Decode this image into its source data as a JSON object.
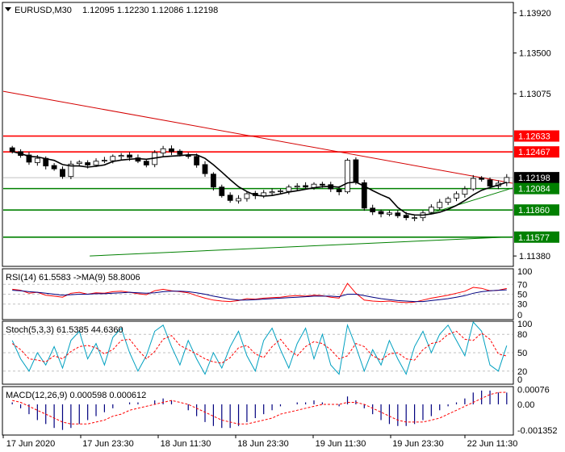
{
  "header": {
    "symbol_label": "EURUSD,M30",
    "ohlc": "1.12095 1.12230 1.12086 1.12198"
  },
  "colors": {
    "background": "#ffffff",
    "frame": "#000000",
    "resistance": "#ff0000",
    "support": "#008000",
    "trend_down": "#d40000",
    "trend_up": "#008000",
    "candle_up": "#ffffff",
    "candle_down": "#000000",
    "ma": "#000000",
    "rsi": "#ff0000",
    "rsi_ma": "#000080",
    "stoch_main": "#00a0c0",
    "stoch_signal": "#ff0000",
    "macd_hist": "#00007f",
    "macd_signal": "#ff0000",
    "level_line": "#c0c0c0"
  },
  "chart_data": [
    {
      "type": "candlestick",
      "panel": "price",
      "ylim": [
        1.1128,
        1.1402
      ],
      "y_ticks": [
        "1.13920",
        "1.13500",
        "1.13075",
        "1.12633",
        "1.12467",
        "1.12198",
        "1.12084",
        "1.11860",
        "1.11577",
        "1.11380"
      ],
      "current_price": "1.12198",
      "resistance_levels": [
        "1.12633",
        "1.12467"
      ],
      "support_levels": [
        "1.12084",
        "1.11860",
        "1.11577"
      ],
      "moving_average": true,
      "trendlines": [
        {
          "kind": "downtrend",
          "from_time": "17 Jun 2020",
          "from_price": 1.131,
          "to_time": "22 Jun 11:30",
          "to_price": 1.1214
        },
        {
          "kind": "uptrend",
          "from_time": "19 Jun 23:30",
          "from_price": 1.118,
          "to_time": "22 Jun 11:30",
          "to_price": 1.1209
        },
        {
          "kind": "long uptrend",
          "from_time": "17 Jun 23:30",
          "from_price": 1.1138,
          "to_time": "22 Jun 11:30",
          "to_price": 1.1158
        }
      ],
      "close_path": [
        1.1247,
        1.1243,
        1.1236,
        1.124,
        1.1232,
        1.1229,
        1.1221,
        1.1234,
        1.1236,
        1.1233,
        1.1237,
        1.1238,
        1.1242,
        1.1243,
        1.1241,
        1.1237,
        1.1233,
        1.1246,
        1.125,
        1.1247,
        1.1244,
        1.1242,
        1.1233,
        1.1224,
        1.121,
        1.1201,
        1.1196,
        1.1198,
        1.1203,
        1.1201,
        1.1204,
        1.1205,
        1.1206,
        1.121,
        1.1211,
        1.121,
        1.1213,
        1.1212,
        1.1208,
        1.1205,
        1.1238,
        1.1215,
        1.1188,
        1.1184,
        1.1182,
        1.1183,
        1.118,
        1.1178,
        1.1178,
        1.1183,
        1.1189,
        1.1194,
        1.1198,
        1.1203,
        1.1208,
        1.1219,
        1.1218,
        1.1211,
        1.1214,
        1.122
      ]
    },
    {
      "type": "line",
      "panel": "rsi",
      "label": "RSI(14) 61.5583 ->MA(9) 58.8006",
      "ylim": [
        0,
        100
      ],
      "levels": [
        70,
        50,
        30
      ],
      "y_ticks": [
        "100",
        "70",
        "50",
        "30",
        "0"
      ],
      "series": [
        {
          "values": [
            60,
            58,
            52,
            54,
            48,
            46,
            44,
            52,
            54,
            50,
            53,
            52,
            55,
            56,
            54,
            51,
            49,
            57,
            60,
            57,
            55,
            53,
            47,
            42,
            38,
            36,
            35,
            37,
            41,
            40,
            42,
            43,
            44,
            46,
            47,
            46,
            48,
            47,
            44,
            42,
            72,
            52,
            38,
            36,
            35,
            36,
            34,
            33,
            34,
            38,
            42,
            45,
            48,
            52,
            56,
            64,
            62,
            57,
            58,
            61.5583
          ]
        },
        {
          "values": [
            58,
            57,
            55,
            54,
            52,
            50,
            48,
            49,
            50,
            50,
            51,
            51,
            52,
            53,
            54,
            53,
            52,
            53,
            55,
            56,
            56,
            55,
            53,
            50,
            46,
            43,
            40,
            38,
            38,
            39,
            40,
            41,
            42,
            43,
            44,
            45,
            46,
            46,
            46,
            45,
            50,
            50,
            47,
            44,
            41,
            39,
            37,
            36,
            35,
            35,
            37,
            39,
            41,
            44,
            47,
            52,
            55,
            57,
            58,
            58.8006
          ]
        }
      ]
    },
    {
      "type": "line",
      "panel": "stochastic",
      "label": "Stoch(5,3,3) 61.5385 44.6360",
      "ylim": [
        0,
        100
      ],
      "levels": [
        80,
        50,
        20
      ],
      "y_ticks": [
        "100",
        "80",
        "50",
        "20",
        "0"
      ],
      "series": [
        {
          "values": [
            70,
            40,
            20,
            50,
            30,
            60,
            25,
            70,
            85,
            40,
            65,
            30,
            75,
            90,
            50,
            20,
            45,
            85,
            95,
            60,
            30,
            70,
            40,
            15,
            50,
            25,
            60,
            85,
            45,
            20,
            70,
            90,
            55,
            25,
            65,
            90,
            40,
            80,
            30,
            15,
            95,
            60,
            20,
            55,
            30,
            70,
            40,
            15,
            60,
            85,
            50,
            80,
            95,
            70,
            45,
            100,
            85,
            30,
            20,
            61.5385
          ]
        },
        {
          "values": [
            65,
            55,
            40,
            38,
            35,
            45,
            40,
            52,
            60,
            62,
            58,
            48,
            55,
            70,
            72,
            55,
            40,
            52,
            72,
            78,
            62,
            55,
            48,
            40,
            35,
            33,
            42,
            58,
            62,
            48,
            42,
            60,
            72,
            55,
            45,
            60,
            68,
            65,
            55,
            40,
            45,
            65,
            60,
            45,
            38,
            48,
            50,
            40,
            38,
            55,
            65,
            68,
            80,
            85,
            72,
            70,
            82,
            72,
            48,
            44.636
          ]
        }
      ]
    },
    {
      "type": "histogram",
      "panel": "macd",
      "label": "MACD(12,26,9) 0.000598 0.000612",
      "ylim": [
        -0.00152,
        0.00086
      ],
      "y_ticks": [
        "0.00076",
        "0.00",
        "-0.001352"
      ],
      "series": [
        {
          "values": [
            0.0001,
            -0.0002,
            -0.0005,
            -0.0008,
            -0.001,
            -0.0012,
            -0.0013,
            -0.0012,
            -0.001,
            -0.0008,
            -0.0006,
            -0.0004,
            -0.0002,
            0.0,
            0.0001,
            0.0001,
            0.0,
            0.0002,
            0.0003,
            0.0002,
            0.0,
            -0.0003,
            -0.0006,
            -0.0009,
            -0.0011,
            -0.0012,
            -0.0012,
            -0.0011,
            -0.0009,
            -0.0007,
            -0.0005,
            -0.0003,
            -0.0001,
            0.0,
            0.0001,
            0.0001,
            0.0002,
            0.0001,
            0.0,
            -0.0001,
            0.0004,
            0.0002,
            -0.0002,
            -0.0005,
            -0.0008,
            -0.001,
            -0.0011,
            -0.0011,
            -0.001,
            -0.0008,
            -0.0006,
            -0.0003,
            -0.0001,
            0.0001,
            0.0003,
            0.0006,
            0.0007,
            0.0007,
            0.0006,
            0.000598
          ]
        },
        {
          "values": [
            0.0002,
            0.0001,
            -0.0001,
            -0.0003,
            -0.0005,
            -0.0007,
            -0.0009,
            -0.001,
            -0.001,
            -0.001,
            -0.0009,
            -0.0008,
            -0.0006,
            -0.0005,
            -0.0003,
            -0.0002,
            -0.0001,
            0.0,
            0.0001,
            0.0002,
            0.0001,
            0.0,
            -0.0002,
            -0.0004,
            -0.0006,
            -0.0008,
            -0.0009,
            -0.001,
            -0.001,
            -0.0009,
            -0.0008,
            -0.0007,
            -0.0005,
            -0.0004,
            -0.0003,
            -0.0002,
            -0.0001,
            0.0,
            0.0,
            0.0,
            0.0001,
            0.0001,
            0.0,
            -0.0002,
            -0.0004,
            -0.0006,
            -0.0008,
            -0.0009,
            -0.0009,
            -0.0009,
            -0.0008,
            -0.0007,
            -0.0005,
            -0.0003,
            -0.0001,
            0.0001,
            0.0003,
            0.0005,
            0.0006,
            0.000612
          ]
        }
      ]
    }
  ],
  "x_ticks": [
    "17 Jun 2020",
    "17 Jun 23:30",
    "18 Jun 11:30",
    "18 Jun 23:30",
    "19 Jun 11:30",
    "19 Jun 23:30",
    "22 Jun 11:30"
  ]
}
